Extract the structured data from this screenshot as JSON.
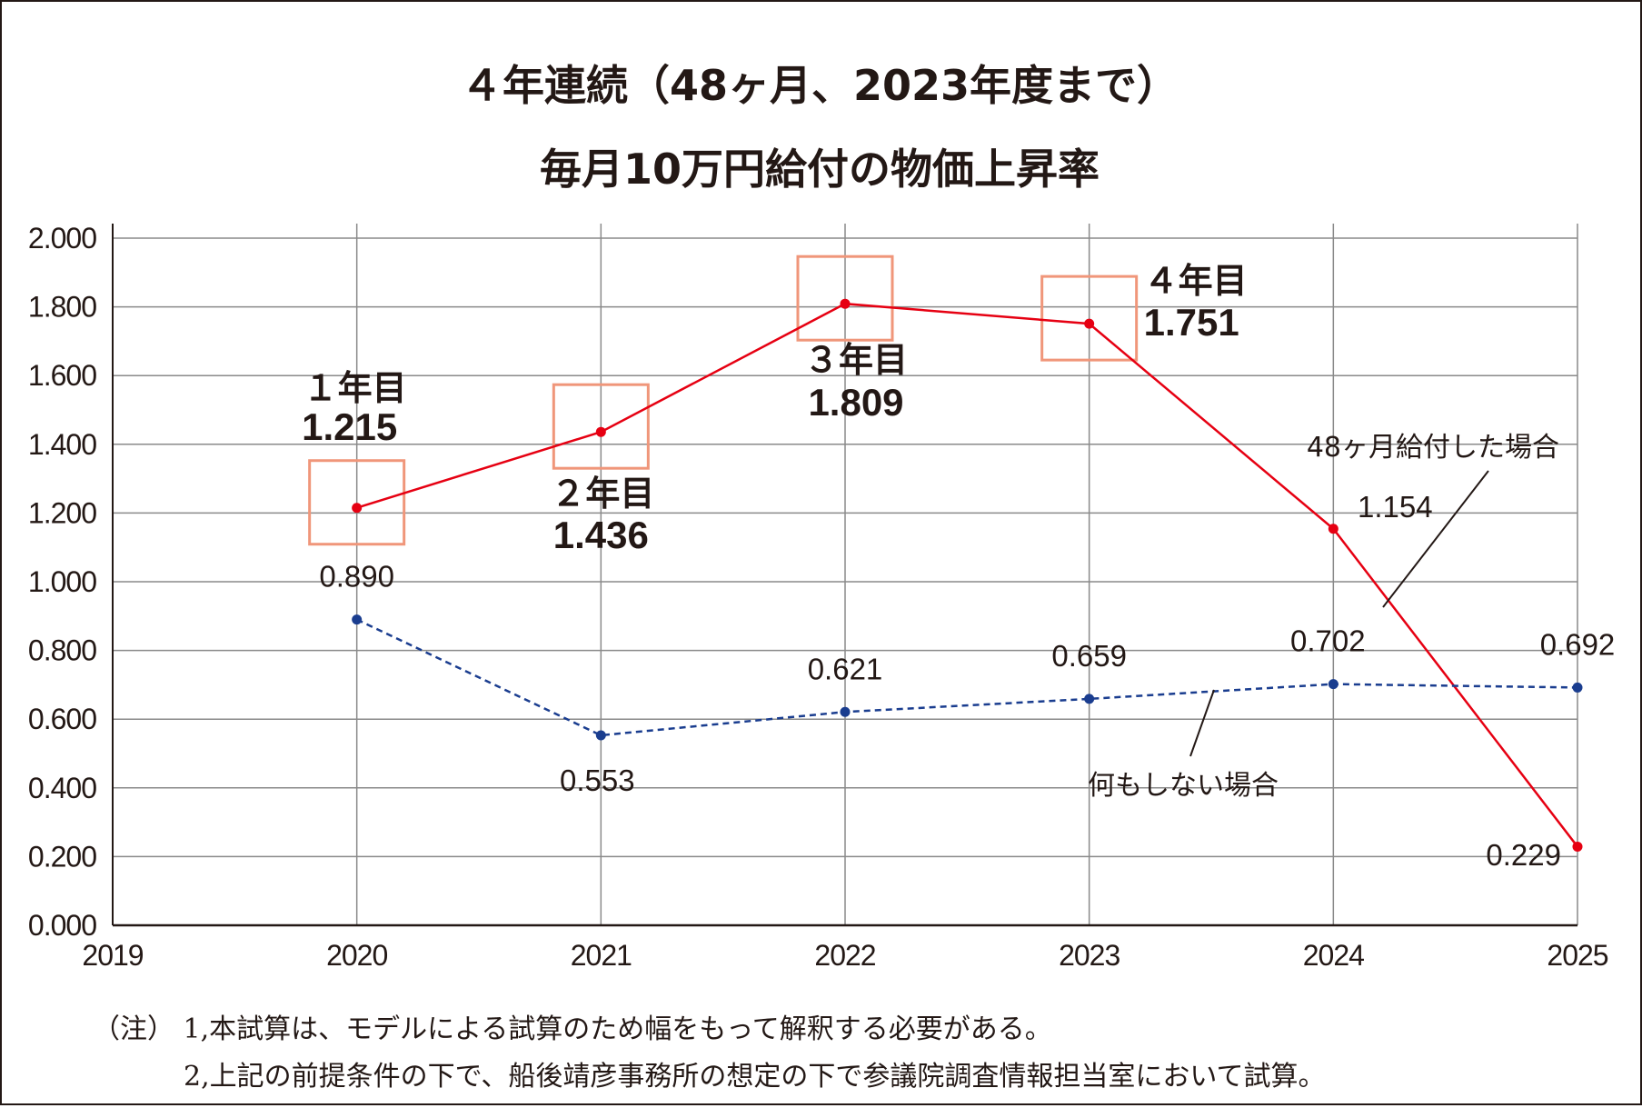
{
  "chart_data": {
    "type": "line",
    "title": "４年連続（48ヶ月、2023年度まで）",
    "subtitle": "毎月10万円給付の物価上昇率",
    "xlabel": "",
    "ylabel": "",
    "x": [
      "2019",
      "2020",
      "2021",
      "2022",
      "2023",
      "2024",
      "2025"
    ],
    "ylim": [
      0,
      2
    ],
    "yticks": [
      "2.000",
      "1.800",
      "1.600",
      "1.400",
      "1.200",
      "1.000",
      "0.800",
      "0.600",
      "0.400",
      "0.200",
      "0.000"
    ],
    "grid": true,
    "series": [
      {
        "name": "48ヶ月給付した場合",
        "color": "#e60012",
        "style": "solid",
        "x": [
          "2020",
          "2021",
          "2022",
          "2023",
          "2024",
          "2025"
        ],
        "values": [
          1.215,
          1.436,
          1.809,
          1.751,
          1.154,
          0.229
        ],
        "labels": [
          "1.215",
          "1.436",
          "1.809",
          "1.751",
          "1.154",
          "0.229"
        ]
      },
      {
        "name": "何もしない場合",
        "color": "#1a3d8f",
        "style": "dashed",
        "x": [
          "2020",
          "2021",
          "2022",
          "2023",
          "2024",
          "2025"
        ],
        "values": [
          0.89,
          0.553,
          0.621,
          0.659,
          0.702,
          0.692
        ],
        "labels": [
          "0.890",
          "0.553",
          "0.621",
          "0.659",
          "0.702",
          "0.692"
        ]
      }
    ],
    "highlight_color": "#f0967a",
    "year_labels": [
      "１年目",
      "２年目",
      "３年目",
      "４年目"
    ]
  },
  "notes": [
    "（注） 1,本試算は、モデルによる試算のため幅をもって解釈する必要がある。",
    "2,上記の前提条件の下で、船後靖彦事務所の想定の下で参議院調査情報担当室において試算。"
  ]
}
